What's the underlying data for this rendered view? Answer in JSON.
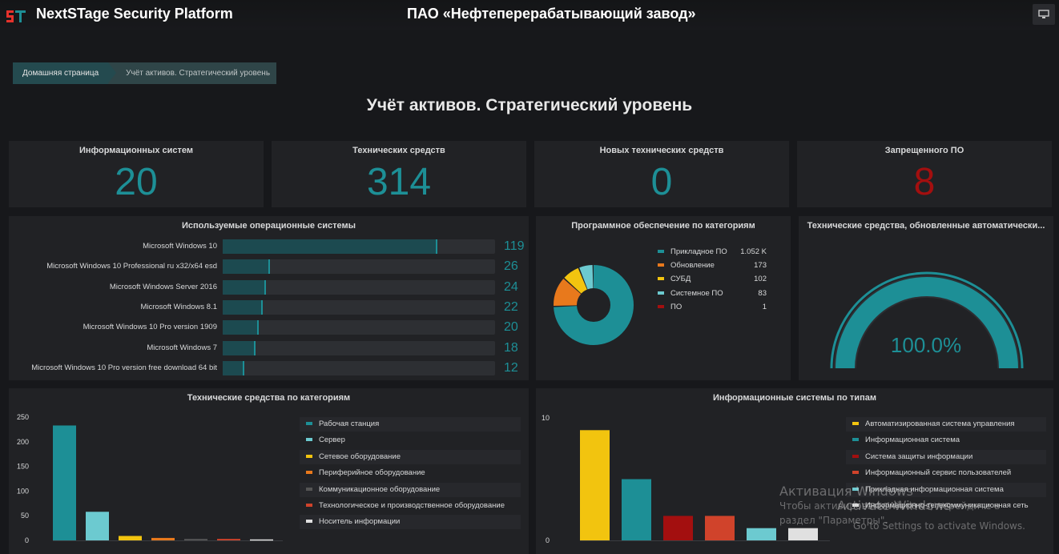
{
  "header": {
    "app_title": "NextSTage Security Platform",
    "org_title": "ПАО «Нефтеперерабатывающий завод»",
    "logo_icon": "nextstage-logo-icon",
    "monitor_icon": "monitor-icon"
  },
  "breadcrumb": {
    "home": "Домашняя страница",
    "current": "Учёт активов. Стратегический уровень"
  },
  "page_title": "Учёт активов. Стратегический уровень",
  "stats": [
    {
      "label": "Информационных систем",
      "value": "20",
      "color": "#1d8f96"
    },
    {
      "label": "Технических средств",
      "value": "314",
      "color": "#1d8f96"
    },
    {
      "label": "Новых технических средств",
      "value": "0",
      "color": "#1d8f96"
    },
    {
      "label": "Запрещенного ПО",
      "value": "8",
      "color": "#a30f0f"
    }
  ],
  "os_panel": {
    "title": "Используемые операционные системы",
    "items": [
      {
        "label": "Microsoft Windows 10",
        "value": "119"
      },
      {
        "label": "Microsoft Windows 10 Professional ru x32/x64 esd",
        "value": "26"
      },
      {
        "label": "Microsoft Windows Server 2016",
        "value": "24"
      },
      {
        "label": "Microsoft Windows 8.1",
        "value": "22"
      },
      {
        "label": "Microsoft Windows 10 Pro version 1909",
        "value": "20"
      },
      {
        "label": "Microsoft Windows 7",
        "value": "18"
      },
      {
        "label": "Microsoft Windows 10 Pro version free download 64 bit",
        "value": "12"
      }
    ]
  },
  "software_panel": {
    "title": "Программное обеспечение по категориям",
    "items": [
      {
        "label": "Прикладное ПО",
        "value": "1.052 K",
        "count": 1052,
        "color": "#1d8f96"
      },
      {
        "label": "Обновление",
        "value": "173",
        "count": 173,
        "color": "#e8791c"
      },
      {
        "label": "СУБД",
        "value": "102",
        "count": 102,
        "color": "#f2c40f"
      },
      {
        "label": "Системное ПО",
        "value": "83",
        "count": 83,
        "color": "#6ccad0"
      },
      {
        "label": "ПО",
        "value": "1",
        "count": 1,
        "color": "#a30f0f"
      }
    ]
  },
  "gauge_panel": {
    "title": "Технические средства, обновленные автоматически...",
    "value": "100.0%",
    "fraction": 1.0,
    "color": "#1d8f96"
  },
  "tech_panel": {
    "title": "Технические средства по категориям"
  },
  "is_panel": {
    "title": "Информационные системы по типам"
  },
  "chart_data": [
    {
      "type": "bar",
      "title": "Технические средства по категориям",
      "categories": [
        "Рабочая станция",
        "Сервер",
        "Сетевое оборудование",
        "Периферийное оборудование",
        "Коммуникационное оборудование",
        "Технологическое и производственное оборудование",
        "Носитель информации"
      ],
      "values": [
        233,
        58,
        9,
        5,
        3,
        3,
        2
      ],
      "colors": [
        "#1d8f96",
        "#6ccad0",
        "#f2c40f",
        "#e8791c",
        "#555555",
        "#d0432b",
        "#e0e0e0"
      ],
      "yticks": [
        "0",
        "50",
        "100",
        "150",
        "200",
        "250"
      ],
      "ylim": [
        0,
        250
      ],
      "legend": "right"
    },
    {
      "type": "bar",
      "title": "Информационные системы по типам",
      "categories": [
        "Автоматизированная система управления",
        "Информационная система",
        "Система защиты информации",
        "Информационный сервис пользователей",
        "Прикладная информационная система",
        "Информационно-телекоммуникационная сеть"
      ],
      "values": [
        9,
        5,
        2,
        2,
        1,
        1
      ],
      "colors": [
        "#f2c40f",
        "#1d8f96",
        "#a30f0f",
        "#d0432b",
        "#6ccad0",
        "#e0e0e0"
      ],
      "yticks": [
        "0",
        "10"
      ],
      "ylim": [
        0,
        10
      ],
      "legend": "right"
    }
  ],
  "watermark": {
    "title": "Активация Windows",
    "line1": "Чтобы активировать Windows, перейдите в",
    "line2": "раздел \"Параметры\".",
    "overlay_title": "Activate Windows",
    "overlay_line": "Go to Settings to activate Windows."
  }
}
